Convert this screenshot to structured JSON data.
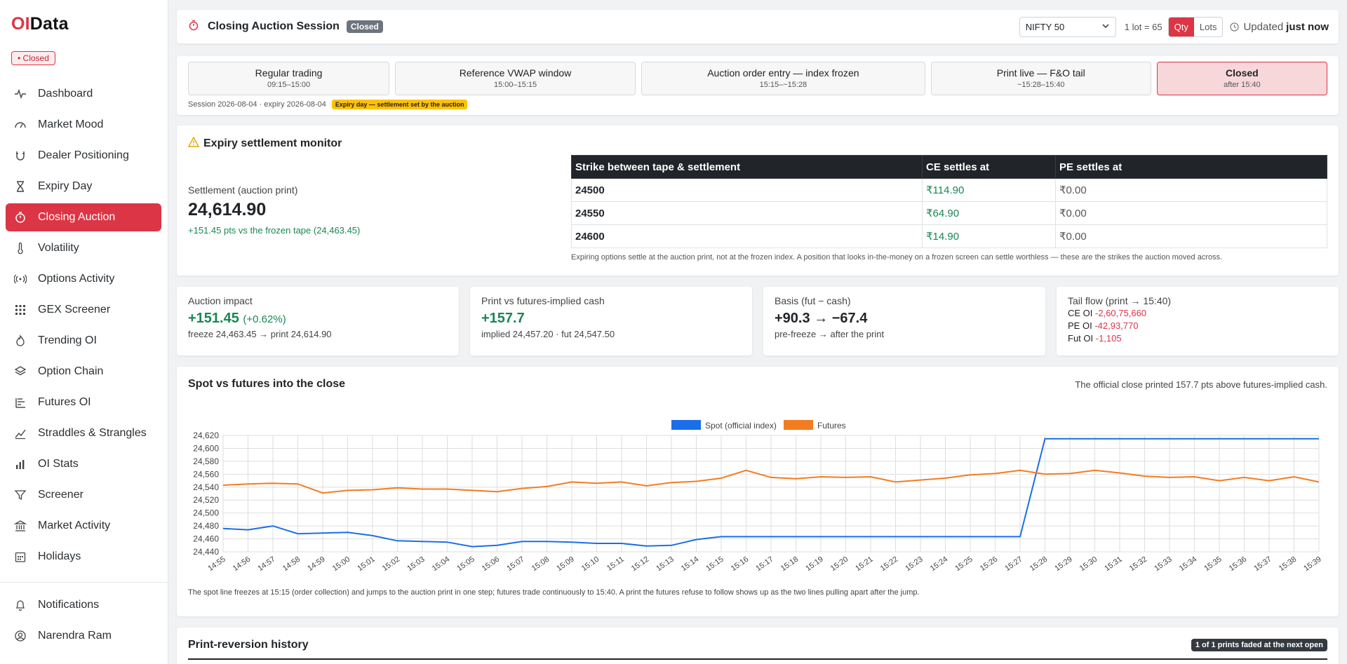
{
  "brand": {
    "prefix": "OI",
    "suffix": "Data"
  },
  "status_pill": "• Closed",
  "nav": [
    {
      "label": "Dashboard",
      "icon": "pulse-icon"
    },
    {
      "label": "Market Mood",
      "icon": "gauge-icon"
    },
    {
      "label": "Dealer Positioning",
      "icon": "magnet-icon"
    },
    {
      "label": "Expiry Day",
      "icon": "hourglass-icon"
    },
    {
      "label": "Closing Auction",
      "icon": "stopwatch-icon",
      "active": true
    },
    {
      "label": "Volatility",
      "icon": "thermometer-icon"
    },
    {
      "label": "Options Activity",
      "icon": "broadcast-icon"
    },
    {
      "label": "GEX Screener",
      "icon": "grid-icon"
    },
    {
      "label": "Trending OI",
      "icon": "flame-icon"
    },
    {
      "label": "Option Chain",
      "icon": "layers-icon"
    },
    {
      "label": "Futures OI",
      "icon": "bars-list-icon"
    },
    {
      "label": "Straddles & Strangles",
      "icon": "trend-icon"
    },
    {
      "label": "OI Stats",
      "icon": "bar-chart-icon"
    },
    {
      "label": "Screener",
      "icon": "filter-icon"
    },
    {
      "label": "Market Activity",
      "icon": "bank-icon"
    },
    {
      "label": "Holidays",
      "icon": "calendar-icon"
    }
  ],
  "footer_nav": [
    {
      "label": "Notifications",
      "icon": "bell-icon"
    },
    {
      "label": "Narendra Ram",
      "icon": "user-icon"
    }
  ],
  "header": {
    "title": "Closing Auction Session",
    "badge": "Closed",
    "instrument": "NIFTY 50",
    "lot": "1 lot = 65",
    "toggle": {
      "qty": "Qty",
      "lots": "Lots"
    },
    "updated_prefix": "Updated",
    "updated_value": "just now"
  },
  "phases": [
    {
      "name": "Regular trading",
      "time": "09:15–15:00"
    },
    {
      "name": "Reference VWAP window",
      "time": "15:00–15:15"
    },
    {
      "name": "Auction order entry — index frozen",
      "time": "15:15–~15:28"
    },
    {
      "name": "Print live — F&O tail",
      "time": "~15:28–15:40"
    },
    {
      "name": "Closed",
      "time": "after 15:40"
    }
  ],
  "session_line": "Session 2026-08-04 · expiry 2026-08-04",
  "expiry_badge": "Expiry day — settlement set by the auction",
  "settlement": {
    "heading": "Expiry settlement monitor",
    "label": "Settlement (auction print)",
    "value": "24,614.90",
    "delta": "+151.45 pts vs the frozen tape (24,463.45)",
    "table": {
      "headers": [
        "Strike between tape & settlement",
        "CE settles at",
        "PE settles at"
      ],
      "rows": [
        {
          "strike": "24500",
          "ce": "₹114.90",
          "pe": "₹0.00"
        },
        {
          "strike": "24550",
          "ce": "₹64.90",
          "pe": "₹0.00"
        },
        {
          "strike": "24600",
          "ce": "₹14.90",
          "pe": "₹0.00"
        }
      ]
    },
    "note": "Expiring options settle at the auction print, not at the frozen index. A position that looks in-the-money on a frozen screen can settle worthless — these are the strikes the auction moved across."
  },
  "metrics": {
    "impact": {
      "label": "Auction impact",
      "value": "+151.45",
      "pct": "(+0.62%)",
      "sub": "freeze 24,463.45 → print 24,614.90"
    },
    "print_vs": {
      "label": "Print vs futures-implied cash",
      "value": "+157.7",
      "sub": "implied 24,457.20 · fut 24,547.50"
    },
    "basis": {
      "label": "Basis (fut − cash)",
      "value": "+90.3 → −67.4",
      "sub": "pre-freeze → after the print"
    },
    "tail": {
      "label": "Tail flow (print → 15:40)",
      "ce_label": "CE OI",
      "ce": "-2,60,75,660",
      "pe_label": "PE OI",
      "pe": "-42,93,770",
      "fut_label": "Fut OI",
      "fut": "-1,105"
    }
  },
  "chart": {
    "title": "Spot vs futures into the close",
    "note_right": "The official close printed 157.7 pts above futures-implied cash.",
    "caption": "The spot line freezes at 15:15 (order collection) and jumps to the auction print in one step; futures trade continuously to 15:40. A print the futures refuse to follow shows up as the two lines pulling apart after the jump."
  },
  "colors": {
    "spot": "#1a6fe8",
    "futures": "#f47c20",
    "accent": "#dc3545"
  },
  "chart_data": {
    "type": "line",
    "x": [
      "14:55",
      "14:56",
      "14:57",
      "14:58",
      "14:59",
      "15:00",
      "15:01",
      "15:02",
      "15:03",
      "15:04",
      "15:05",
      "15:06",
      "15:07",
      "15:08",
      "15:09",
      "15:10",
      "15:11",
      "15:12",
      "15:13",
      "15:14",
      "15:15",
      "15:16",
      "15:17",
      "15:18",
      "15:19",
      "15:20",
      "15:21",
      "15:22",
      "15:23",
      "15:24",
      "15:25",
      "15:26",
      "15:27",
      "15:28",
      "15:29",
      "15:30",
      "15:31",
      "15:32",
      "15:33",
      "15:34",
      "15:35",
      "15:36",
      "15:37",
      "15:38",
      "15:39"
    ],
    "series": [
      {
        "name": "Spot (official index)",
        "values": [
          24476,
          24474,
          24480,
          24468,
          24469,
          24470,
          24465,
          24457,
          24456,
          24455,
          24448,
          24450,
          24456,
          24456,
          24455,
          24453,
          24453,
          24449,
          24450,
          24459,
          24463.45,
          24463.45,
          24463.45,
          24463.45,
          24463.45,
          24463.45,
          24463.45,
          24463.45,
          24463.45,
          24463.45,
          24463.45,
          24463.45,
          24463.45,
          24614.9,
          24614.9,
          24614.9,
          24614.9,
          24614.9,
          24614.9,
          24614.9,
          24614.9,
          24614.9,
          24614.9,
          24614.9,
          24614.9
        ]
      },
      {
        "name": "Futures",
        "values": [
          24543,
          24545,
          24546,
          24545,
          24531,
          24535,
          24536,
          24539,
          24537,
          24537,
          24535,
          24533,
          24538,
          24541,
          24548,
          24546,
          24548,
          24542,
          24547,
          24549,
          24554,
          24566,
          24555,
          24553,
          24556,
          24555,
          24556,
          24548,
          24551,
          24554,
          24559,
          24561,
          24566,
          24560,
          24561,
          24566,
          24562,
          24557,
          24555,
          24556,
          24550,
          24555,
          24550,
          24556,
          24548
        ]
      }
    ],
    "ylim": [
      24440,
      24620
    ],
    "yticks": [
      "24,620",
      "24,600",
      "24,580",
      "24,560",
      "24,540",
      "24,520",
      "24,500",
      "24,480",
      "24,460",
      "24,440"
    ],
    "legend": "top-center",
    "grid": true
  },
  "history": {
    "title": "Print-reversion history",
    "badge": "1 of 1 prints faded at the next open"
  }
}
